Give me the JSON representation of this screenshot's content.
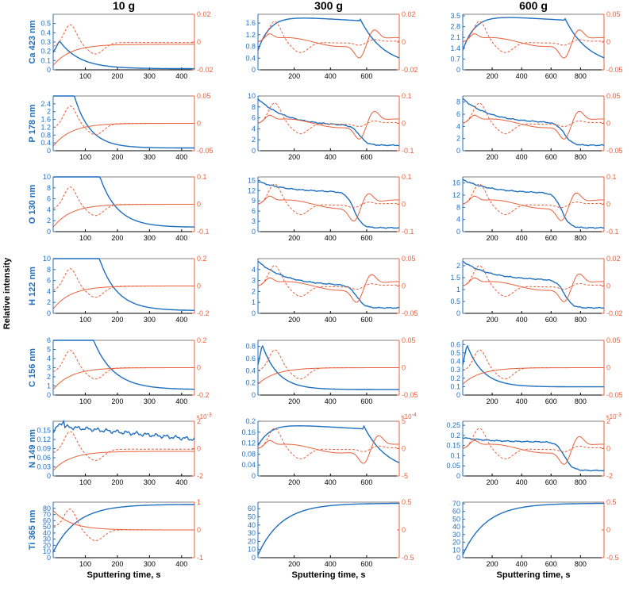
{
  "columns": [
    "10 g",
    "300 g",
    "600 g"
  ],
  "left_colors": {
    "blue": "#1f6fbf",
    "red": "#e8603c",
    "axis_blue": "#1f6fbf",
    "axis_red": "#e8603c"
  },
  "ylabel_global": "Relative intensity",
  "xlabel": "Sputtering time, s",
  "rows": [
    {
      "label": "Ca 423 nm"
    },
    {
      "label": "P 178 nm"
    },
    {
      "label": "O 130 nm"
    },
    {
      "label": "H 122 nm"
    },
    {
      "label": "C 156 nm"
    },
    {
      "label": "N 149 nm"
    },
    {
      "label": "Ti 365 nm"
    }
  ],
  "chart_data": {
    "type": "line",
    "xlim": [
      [
        0,
        440
      ],
      [
        0,
        780
      ],
      [
        0,
        960
      ]
    ],
    "xticks": [
      [
        100,
        200,
        300,
        400
      ],
      [
        200,
        400,
        600
      ],
      [
        200,
        400,
        600,
        800
      ]
    ],
    "panels": [
      [
        {
          "left_ticks": [
            "0",
            "0.1",
            "0.2",
            "0.3",
            "0.4",
            "0.5"
          ],
          "left_range": [
            0,
            0.6
          ],
          "right_ticks": [
            "-0.02",
            "0",
            "0.02"
          ],
          "right_range": [
            -0.02,
            0.02
          ],
          "multiplier": "",
          "shapes": {
            "blue": "decay",
            "red": "rise"
          },
          "params": {
            "t1": 0.045,
            "b1": 0.52,
            "e1": 0.02,
            "k": 7,
            "r0": 0.08,
            "r1": 0.46
          }
        },
        {
          "left_ticks": [
            "0",
            "0.4",
            "0.8",
            "1.2",
            "1.6",
            "2",
            "2.4"
          ],
          "left_range": [
            0,
            2.8
          ],
          "right_ticks": [
            "-0.05",
            "0",
            "0.05"
          ],
          "right_range": [
            -0.05,
            0.05
          ],
          "multiplier": "",
          "shapes": {
            "blue": "decay",
            "red": "rise"
          },
          "params": {
            "t1": 0.04,
            "b1": 2.6,
            "e1": 0.05,
            "k": 9,
            "r0": 0.08,
            "r1": 0.5
          }
        },
        {
          "left_ticks": [
            "0",
            "2",
            "4",
            "6",
            "8",
            "10"
          ],
          "left_range": [
            0,
            10
          ],
          "right_ticks": [
            "-0.1",
            "0",
            "0.1"
          ],
          "right_range": [
            -0.1,
            0.1
          ],
          "multiplier": "",
          "shapes": {
            "blue": "decay",
            "red": "rise"
          },
          "params": {
            "t1": 0.04,
            "b1": 9.5,
            "e1": 0.08,
            "k": 8,
            "r0": 0.08,
            "r1": 0.5
          }
        },
        {
          "left_ticks": [
            "0",
            "2",
            "4",
            "6",
            "8",
            "10"
          ],
          "left_range": [
            0,
            10
          ],
          "right_ticks": [
            "-0.2",
            "0",
            "0.2"
          ],
          "right_range": [
            -0.2,
            0.2
          ],
          "multiplier": "",
          "shapes": {
            "blue": "decay",
            "red": "rise"
          },
          "params": {
            "t1": 0.04,
            "b1": 9.5,
            "e1": 0.05,
            "k": 8,
            "r0": 0.08,
            "r1": 0.5
          }
        },
        {
          "left_ticks": [
            "0",
            "1",
            "2",
            "3",
            "4",
            "5",
            "6"
          ],
          "left_range": [
            0,
            6
          ],
          "right_ticks": [
            "-0.2",
            "0",
            "0.2"
          ],
          "right_range": [
            -0.2,
            0.2
          ],
          "multiplier": "",
          "shapes": {
            "blue": "decay",
            "red": "rise"
          },
          "params": {
            "t1": 0.03,
            "b1": 5.5,
            "e1": 0.1,
            "k": 7,
            "r0": 0.1,
            "r1": 0.5
          }
        },
        {
          "left_ticks": [
            "0",
            "0.03",
            "0.06",
            "0.09",
            "0.12",
            "0.15"
          ],
          "left_range": [
            0,
            0.18
          ],
          "right_ticks": [
            "-2",
            "0",
            "2"
          ],
          "right_range": [
            -2,
            2
          ],
          "multiplier": "×10^-3",
          "shapes": {
            "blue": "plateau",
            "red": "rise"
          },
          "params": {
            "t1": 0.08,
            "b1": 0.9,
            "e1": 0.6,
            "k": 3,
            "r0": 0.1,
            "r1": 0.45
          }
        },
        {
          "left_ticks": [
            "0",
            "10",
            "20",
            "30",
            "40",
            "50",
            "60",
            "70",
            "80"
          ],
          "left_range": [
            0,
            90
          ],
          "right_ticks": [
            "-1",
            "0",
            "1"
          ],
          "right_range": [
            -1,
            1
          ],
          "multiplier": "",
          "shapes": {
            "blue": "grow",
            "red": "fall"
          },
          "params": {
            "t1": 0.1,
            "b1": 0.1,
            "e1": 0.96,
            "k": 6,
            "r0": 0.85,
            "r1": 0.5
          }
        }
      ],
      [
        {
          "left_ticks": [
            "0",
            "0.4",
            "0.8",
            "1.2",
            "1.6"
          ],
          "left_range": [
            0,
            1.9
          ],
          "right_ticks": [
            "-0.02",
            "0",
            "0.02"
          ],
          "right_range": [
            -0.02,
            0.02
          ],
          "multiplier": "",
          "shapes": {
            "blue": "hump",
            "red": "wave"
          },
          "params": {
            "a": 0.35,
            "p": 0.97,
            "q": 0.7,
            "c": 0.72,
            "r": 0.05
          }
        },
        {
          "left_ticks": [
            "0",
            "2",
            "4",
            "6",
            "8",
            "10"
          ],
          "left_range": [
            0,
            10
          ],
          "right_ticks": [
            "-0.1",
            "0",
            "0.1"
          ],
          "right_range": [
            -0.1,
            0.1
          ],
          "multiplier": "",
          "shapes": {
            "blue": "step",
            "red": "wave"
          },
          "params": {
            "a": 0.95,
            "p": 0.45,
            "q": 0.4,
            "c": 0.72,
            "r": 0.1
          }
        },
        {
          "left_ticks": [
            "0",
            "3",
            "6",
            "9",
            "12",
            "15"
          ],
          "left_range": [
            0,
            16
          ],
          "right_ticks": [
            "-0.1",
            "0",
            "0.1"
          ],
          "right_range": [
            -0.1,
            0.1
          ],
          "multiplier": "",
          "shapes": {
            "blue": "step",
            "red": "wave"
          },
          "params": {
            "a": 0.92,
            "p": 0.72,
            "q": 0.68,
            "c": 0.68,
            "r": 0.07
          }
        },
        {
          "left_ticks": [
            "0",
            "1",
            "2",
            "3",
            "4"
          ],
          "left_range": [
            0,
            5
          ],
          "right_ticks": [
            "-0.05",
            "0",
            "0.05"
          ],
          "right_range": [
            -0.05,
            0.05
          ],
          "multiplier": "",
          "shapes": {
            "blue": "step",
            "red": "wave"
          },
          "params": {
            "a": 0.95,
            "p": 0.5,
            "q": 0.3,
            "c": 0.7,
            "r": 0.1
          }
        },
        {
          "left_ticks": [
            "0",
            "0.2",
            "0.4",
            "0.6",
            "0.8"
          ],
          "left_range": [
            0,
            0.9
          ],
          "right_ticks": [
            "-0.05",
            "0",
            "0.05"
          ],
          "right_range": [
            -0.05,
            0.05
          ],
          "multiplier": "",
          "shapes": {
            "blue": "decay",
            "red": "rise"
          },
          "params": {
            "t1": 0.03,
            "b1": 0.92,
            "e1": 0.1,
            "k": 9,
            "r0": 0.2,
            "r1": 0.5
          }
        },
        {
          "left_ticks": [
            "0",
            "0.04",
            "0.08",
            "0.12",
            "0.16",
            "0.2"
          ],
          "left_range": [
            0,
            0.2
          ],
          "right_ticks": [
            "-5",
            "0",
            "5"
          ],
          "right_range": [
            -5,
            5
          ],
          "multiplier": "×10^-4",
          "shapes": {
            "blue": "hump",
            "red": "wave"
          },
          "params": {
            "a": 0.55,
            "p": 0.95,
            "q": 0.55,
            "c": 0.75,
            "r": 0.3
          }
        },
        {
          "left_ticks": [
            "0",
            "10",
            "20",
            "30",
            "40",
            "50",
            "60"
          ],
          "left_range": [
            0,
            68
          ],
          "right_ticks": [
            "-0.5",
            "0",
            "0.5"
          ],
          "right_range": [
            -0.5,
            0.5
          ],
          "multiplier": "",
          "shapes": {
            "blue": "grow",
            "red": "wave"
          },
          "params": {
            "t1": 0.1,
            "b1": 0.05,
            "e1": 0.98,
            "k": 6,
            "r0": 0.5,
            "r1": 0.5
          }
        }
      ],
      [
        {
          "left_ticks": [
            "0",
            "0.7",
            "1.4",
            "2.1",
            "2.8",
            "3.5"
          ],
          "left_range": [
            0,
            3.6
          ],
          "right_ticks": [
            "-0.05",
            "0",
            "0.05"
          ],
          "right_range": [
            -0.05,
            0.05
          ],
          "multiplier": "",
          "shapes": {
            "blue": "hump",
            "red": "wave"
          },
          "params": {
            "a": 0.35,
            "p": 0.98,
            "q": 0.7,
            "c": 0.72,
            "r": 0.05
          }
        },
        {
          "left_ticks": [
            "0",
            "2",
            "4",
            "6",
            "8"
          ],
          "left_range": [
            0,
            9
          ],
          "right_ticks": [
            "-0.05",
            "0",
            "0.05"
          ],
          "right_range": [
            -0.05,
            0.05
          ],
          "multiplier": "",
          "shapes": {
            "blue": "step",
            "red": "wave"
          },
          "params": {
            "a": 0.95,
            "p": 0.5,
            "q": 0.42,
            "c": 0.72,
            "r": 0.1
          }
        },
        {
          "left_ticks": [
            "0",
            "4",
            "8",
            "12",
            "16"
          ],
          "left_range": [
            0,
            18
          ],
          "right_ticks": [
            "-0.1",
            "0",
            "0.1"
          ],
          "right_range": [
            -0.1,
            0.1
          ],
          "multiplier": "",
          "shapes": {
            "blue": "step",
            "red": "wave"
          },
          "params": {
            "a": 0.95,
            "p": 0.7,
            "q": 0.65,
            "c": 0.7,
            "r": 0.07
          }
        },
        {
          "left_ticks": [
            "0",
            "0.5",
            "1",
            "1.5",
            "2"
          ],
          "left_range": [
            0,
            2.3
          ],
          "right_ticks": [
            "-0.02",
            "0",
            "0.02"
          ],
          "right_range": [
            -0.02,
            0.02
          ],
          "multiplier": "",
          "shapes": {
            "blue": "step",
            "red": "wave"
          },
          "params": {
            "a": 0.95,
            "p": 0.6,
            "q": 0.5,
            "c": 0.72,
            "r": 0.1
          }
        },
        {
          "left_ticks": [
            "0",
            "0.1",
            "0.2",
            "0.3",
            "0.4",
            "0.5",
            "0.6"
          ],
          "left_range": [
            0,
            0.65
          ],
          "right_ticks": [
            "-0.05",
            "0",
            "0.05"
          ],
          "right_range": [
            -0.05,
            0.05
          ],
          "multiplier": "",
          "shapes": {
            "blue": "decay",
            "red": "rise"
          },
          "params": {
            "t1": 0.03,
            "b1": 0.92,
            "e1": 0.15,
            "k": 9,
            "r0": 0.2,
            "r1": 0.5
          }
        },
        {
          "left_ticks": [
            "0",
            "0.05",
            "0.1",
            "0.15",
            "0.2",
            "0.25"
          ],
          "left_range": [
            0,
            0.27
          ],
          "right_ticks": [
            "-2",
            "0",
            "2"
          ],
          "right_range": [
            -2,
            2
          ],
          "multiplier": "×10^-3",
          "shapes": {
            "blue": "step",
            "red": "wave"
          },
          "params": {
            "a": 0.7,
            "p": 0.62,
            "q": 0.4,
            "c": 0.72,
            "r": 0.1
          }
        },
        {
          "left_ticks": [
            "0",
            "10",
            "20",
            "30",
            "40",
            "50",
            "60",
            "70"
          ],
          "left_range": [
            0,
            72
          ],
          "right_ticks": [
            "-0.5",
            "0",
            "0.5"
          ],
          "right_range": [
            -0.5,
            0.5
          ],
          "multiplier": "",
          "shapes": {
            "blue": "grow",
            "red": "wave"
          },
          "params": {
            "t1": 0.1,
            "b1": 0.05,
            "e1": 0.98,
            "k": 6,
            "r0": 0.5,
            "r1": 0.5
          }
        }
      ]
    ]
  }
}
